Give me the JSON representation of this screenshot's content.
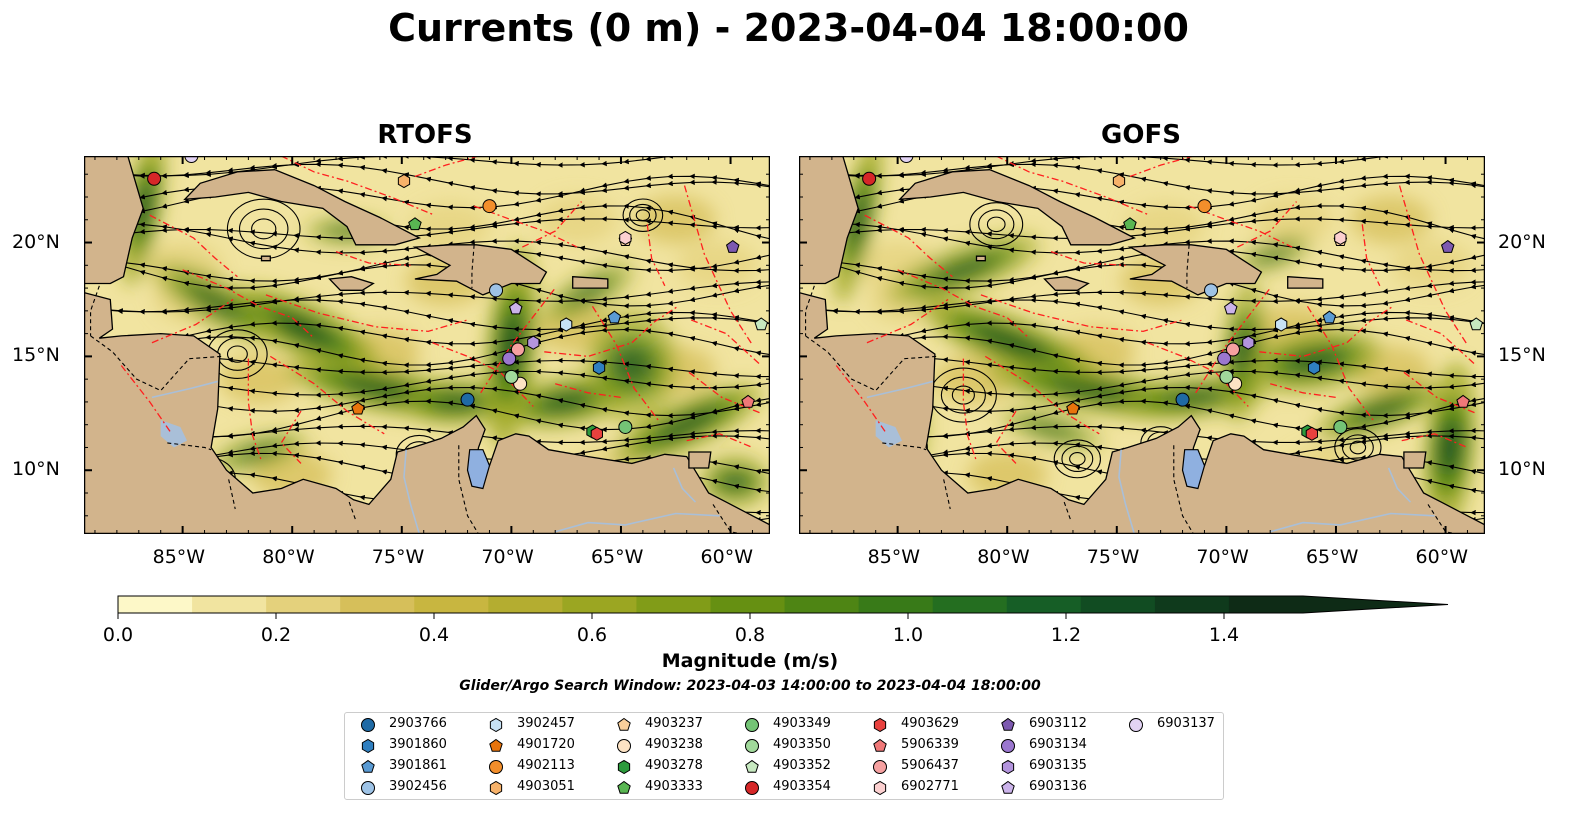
{
  "title": "Currents (0 m) - 2023-04-04 18:00:00",
  "panels": [
    {
      "id": "rtofs",
      "title": "RTOFS"
    },
    {
      "id": "gofs",
      "title": "GOFS"
    }
  ],
  "axes": {
    "lon_ticks": [
      "85°W",
      "80°W",
      "75°W",
      "70°W",
      "65°W",
      "60°W"
    ],
    "lat_ticks": [
      "20°N",
      "15°N",
      "10°N"
    ],
    "lon_range": [
      -89.5,
      -58.2
    ],
    "lat_range": [
      7.2,
      23.8
    ]
  },
  "colorbar": {
    "label": "Magnitude (m/s)",
    "range": [
      0.0,
      1.5
    ],
    "ticks": [
      "0.0",
      "0.2",
      "0.4",
      "0.6",
      "0.8",
      "1.0",
      "1.2",
      "1.4"
    ],
    "tick_values": [
      0.0,
      0.2,
      0.4,
      0.6,
      0.8,
      1.0,
      1.2,
      1.4
    ],
    "colors": [
      "#fdf8c8",
      "#f1e4a0",
      "#e4d17c",
      "#d6bf5a",
      "#c8b640",
      "#b4ad30",
      "#9ba622",
      "#819c18",
      "#669012",
      "#4e8514",
      "#387a18",
      "#246e20",
      "#165e26",
      "#114c22",
      "#0f3a1c",
      "#0e2b16"
    ],
    "extend": "max"
  },
  "search_window": "Glider/Argo Search Window: 2023-04-03 14:00:00 to 2023-04-04 18:00:00",
  "legend": [
    {
      "id": "2903766",
      "marker": "circle",
      "color": "#1f6aa5",
      "lon": -72.0,
      "lat": 13.1
    },
    {
      "id": "3901860",
      "marker": "hexagon",
      "color": "#2f7fc0",
      "lon": -66.0,
      "lat": 14.5
    },
    {
      "id": "3901861",
      "marker": "pentagon",
      "color": "#5a9bd4",
      "lon": -65.3,
      "lat": 16.7
    },
    {
      "id": "3902456",
      "marker": "circle",
      "color": "#9ec3e6",
      "lon": -70.7,
      "lat": 17.9
    },
    {
      "id": "3902457",
      "marker": "hexagon",
      "color": "#c7e2f5",
      "lon": -67.5,
      "lat": 16.4
    },
    {
      "id": "4901720",
      "marker": "pentagon",
      "color": "#e8740c",
      "lon": -77.0,
      "lat": 12.7
    },
    {
      "id": "4902113",
      "marker": "circle",
      "color": "#f28e2b",
      "lon": -71.0,
      "lat": 21.6
    },
    {
      "id": "4903051",
      "marker": "hexagon",
      "color": "#f7b26a",
      "lon": -74.9,
      "lat": 22.7
    },
    {
      "id": "4903237",
      "marker": "pentagon",
      "color": "#f9cf9b",
      "lon": -64.8,
      "lat": 20.1
    },
    {
      "id": "4903238",
      "marker": "circle",
      "color": "#fde3c4",
      "lon": -69.6,
      "lat": 13.8
    },
    {
      "id": "4903278",
      "marker": "hexagon",
      "color": "#2c9a3c",
      "lon": -66.3,
      "lat": 11.7
    },
    {
      "id": "4903333",
      "marker": "pentagon",
      "color": "#59b652",
      "lon": -74.4,
      "lat": 20.8
    },
    {
      "id": "4903349",
      "marker": "circle",
      "color": "#74c476",
      "lon": -64.8,
      "lat": 11.9
    },
    {
      "id": "4903350",
      "marker": "circle",
      "color": "#a1d99b",
      "lon": -70.0,
      "lat": 14.1
    },
    {
      "id": "4903352",
      "marker": "pentagon",
      "color": "#c7e9c0",
      "lon": -58.6,
      "lat": 16.4
    },
    {
      "id": "4903354",
      "marker": "circle",
      "color": "#d62728",
      "lon": -86.3,
      "lat": 22.8
    },
    {
      "id": "4903629",
      "marker": "hexagon",
      "color": "#e8413e",
      "lon": -66.1,
      "lat": 11.6
    },
    {
      "id": "5906339",
      "marker": "pentagon",
      "color": "#f07878",
      "lon": -59.2,
      "lat": 13.0
    },
    {
      "id": "5906437",
      "marker": "circle",
      "color": "#f6a1a1",
      "lon": -69.7,
      "lat": 15.3
    },
    {
      "id": "6902771",
      "marker": "hexagon",
      "color": "#fcd0d0",
      "lon": -64.8,
      "lat": 20.2
    },
    {
      "id": "6903112",
      "marker": "pentagon",
      "color": "#7d59b0",
      "lon": -59.9,
      "lat": 19.8
    },
    {
      "id": "6903134",
      "marker": "circle",
      "color": "#9b77cf",
      "lon": -70.1,
      "lat": 14.9
    },
    {
      "id": "6903135",
      "marker": "hexagon",
      "color": "#b394dd",
      "lon": -69.0,
      "lat": 15.6
    },
    {
      "id": "6903136",
      "marker": "pentagon",
      "color": "#cbb3ea",
      "lon": -69.8,
      "lat": 17.1
    },
    {
      "id": "6903137",
      "marker": "circle",
      "color": "#e2d3f4",
      "lon": -84.6,
      "lat": 23.8
    }
  ]
}
